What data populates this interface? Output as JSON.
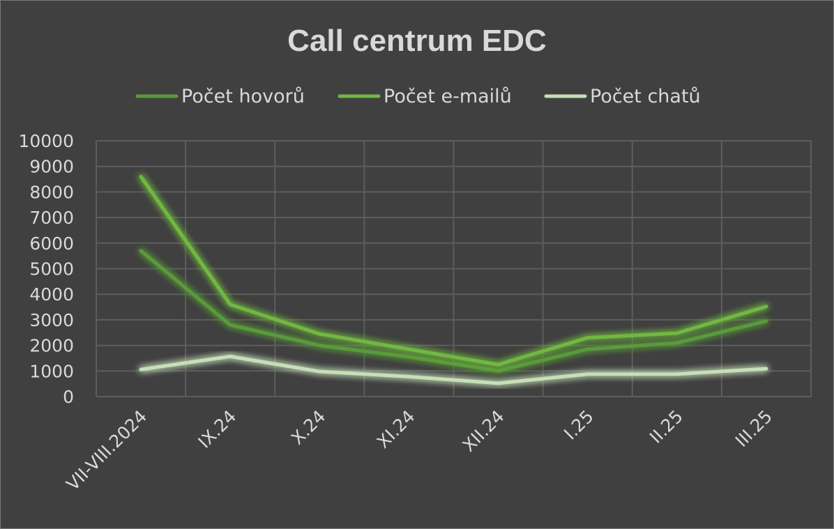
{
  "chart_data": {
    "type": "line",
    "title": "Call centrum EDC",
    "categories": [
      "VII-VIII.2024",
      "IX.24",
      "X.24",
      "XI.24",
      "XII.24",
      "I.25",
      "II.25",
      "III.25"
    ],
    "ylim": [
      0,
      10000
    ],
    "yticks": [
      "10000",
      "9000",
      "8000",
      "7000",
      "6000",
      "5000",
      "4000",
      "3000",
      "2000",
      "1000",
      "0"
    ],
    "grid": true,
    "legend_position": "top",
    "series": [
      {
        "name": "Počet hovorů",
        "color": "#5a9a3a",
        "values": [
          5700,
          2800,
          2000,
          1550,
          1000,
          1850,
          2100,
          2950
        ]
      },
      {
        "name": "Počet e-mailů",
        "color": "#71b843",
        "values": [
          8600,
          3600,
          2450,
          1850,
          1250,
          2300,
          2480,
          3520
        ]
      },
      {
        "name": "Počet chatů",
        "color": "#c6dfb8",
        "values": [
          1060,
          1570,
          980,
          780,
          520,
          880,
          880,
          1090
        ]
      }
    ]
  }
}
